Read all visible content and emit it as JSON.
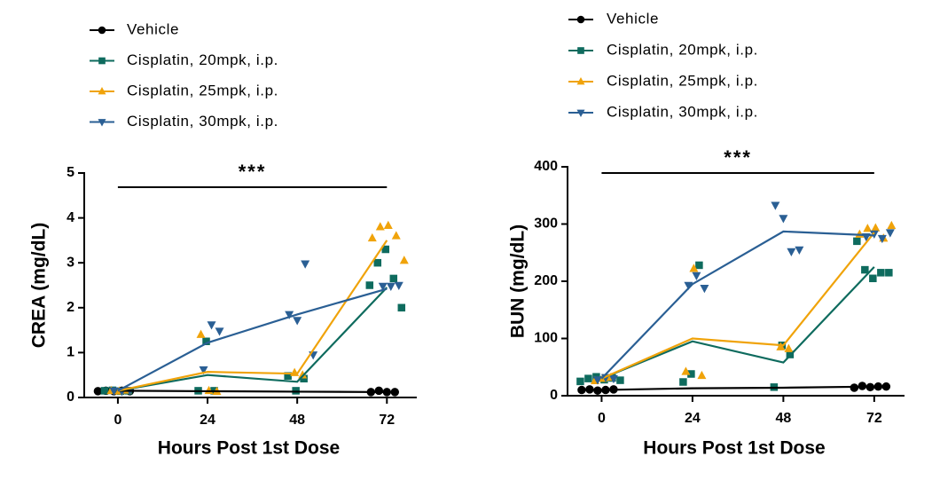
{
  "chart_data": [
    {
      "type": "line",
      "ylabel": "CREA (mg/dL)",
      "xlabel": "Hours Post 1st Dose",
      "annotation": "***",
      "annotation_span": [
        0,
        72
      ],
      "x": [
        0,
        24,
        48,
        72
      ],
      "xlim": [
        -9,
        80
      ],
      "xticks": [
        0,
        24,
        48,
        72
      ],
      "ylim": [
        0,
        5
      ],
      "yticks": [
        0,
        1,
        2,
        3,
        4,
        5
      ],
      "series": [
        {
          "name": "Vehicle",
          "color": "#000000",
          "marker": "circle",
          "values": [
            0.15,
            0.14,
            0.13,
            0.12
          ],
          "points": [
            [
              0,
              0.14
            ],
            [
              0,
              0.15
            ],
            [
              0,
              0.14
            ],
            [
              0,
              0.15
            ],
            [
              0,
              0.14
            ],
            [
              72,
              0.12
            ],
            [
              72,
              0.15
            ],
            [
              72,
              0.12
            ],
            [
              72,
              0.12
            ]
          ]
        },
        {
          "name": "Cisplatin, 20mpk, i.p.",
          "color": "#0e6b5e",
          "marker": "square",
          "values": [
            0.15,
            0.5,
            0.35,
            2.45
          ],
          "points": [
            [
              0,
              0.15
            ],
            [
              0,
              0.16
            ],
            [
              0,
              0.14
            ],
            [
              0,
              0.15
            ],
            [
              24,
              0.15
            ],
            [
              24,
              1.25
            ],
            [
              24,
              0.15
            ],
            [
              48,
              0.48
            ],
            [
              48,
              0.15
            ],
            [
              48,
              0.42
            ],
            [
              72,
              2.5
            ],
            [
              72,
              3.0
            ],
            [
              72,
              3.3
            ],
            [
              72,
              2.65
            ],
            [
              72,
              2.0
            ]
          ]
        },
        {
          "name": "Cisplatin, 25mpk, i.p.",
          "color": "#f0a30a",
          "marker": "triangle-up",
          "values": [
            0.15,
            0.57,
            0.53,
            3.5
          ],
          "points": [
            [
              0,
              0.15
            ],
            [
              0,
              0.14
            ],
            [
              0,
              0.16
            ],
            [
              24,
              1.4
            ],
            [
              24,
              0.15
            ],
            [
              24,
              0.13
            ],
            [
              48,
              0.55
            ],
            [
              48,
              0.5
            ],
            [
              72,
              3.55
            ],
            [
              72,
              3.8
            ],
            [
              72,
              3.83
            ],
            [
              72,
              3.6
            ],
            [
              72,
              3.05
            ]
          ]
        },
        {
          "name": "Cisplatin, 30mpk, i.p.",
          "color": "#2a5f94",
          "marker": "triangle-down",
          "values": [
            0.15,
            1.22,
            1.85,
            2.42
          ],
          "points": [
            [
              0,
              0.15
            ],
            [
              0,
              0.14
            ],
            [
              0,
              0.16
            ],
            [
              24,
              0.62
            ],
            [
              24,
              1.62
            ],
            [
              24,
              1.48
            ],
            [
              48,
              1.85
            ],
            [
              48,
              1.72
            ],
            [
              48,
              2.98
            ],
            [
              48,
              0.95
            ],
            [
              72,
              2.48
            ],
            [
              72,
              2.48
            ],
            [
              72,
              2.5
            ]
          ]
        }
      ]
    },
    {
      "type": "line",
      "ylabel": "BUN (mg/dL)",
      "xlabel": "Hours Post 1st Dose",
      "annotation": "***",
      "annotation_span": [
        0,
        72
      ],
      "x": [
        0,
        24,
        48,
        72
      ],
      "xlim": [
        -9,
        80
      ],
      "xticks": [
        0,
        24,
        48,
        72
      ],
      "ylim": [
        0,
        400
      ],
      "yticks": [
        0,
        100,
        200,
        300,
        400
      ],
      "series": [
        {
          "name": "Vehicle",
          "color": "#000000",
          "marker": "circle",
          "values": [
            10,
            13,
            14,
            16
          ],
          "points": [
            [
              0,
              10
            ],
            [
              0,
              11
            ],
            [
              0,
              9
            ],
            [
              0,
              10
            ],
            [
              0,
              11
            ],
            [
              72,
              14
            ],
            [
              72,
              17
            ],
            [
              72,
              15
            ],
            [
              72,
              16
            ],
            [
              72,
              16
            ]
          ]
        },
        {
          "name": "Cisplatin, 20mpk, i.p.",
          "color": "#0e6b5e",
          "marker": "square",
          "values": [
            30,
            95,
            58,
            225
          ],
          "points": [
            [
              0,
              25
            ],
            [
              0,
              30
            ],
            [
              0,
              33
            ],
            [
              0,
              28
            ],
            [
              0,
              31
            ],
            [
              0,
              27
            ],
            [
              24,
              24
            ],
            [
              24,
              38
            ],
            [
              24,
              228
            ],
            [
              48,
              15
            ],
            [
              48,
              88
            ],
            [
              48,
              72
            ],
            [
              72,
              270
            ],
            [
              72,
              220
            ],
            [
              72,
              205
            ],
            [
              72,
              215
            ],
            [
              72,
              215
            ]
          ]
        },
        {
          "name": "Cisplatin, 25mpk, i.p.",
          "color": "#f0a30a",
          "marker": "triangle-up",
          "values": [
            30,
            100,
            88,
            285
          ],
          "points": [
            [
              0,
              26
            ],
            [
              0,
              30
            ],
            [
              0,
              32
            ],
            [
              24,
              42
            ],
            [
              24,
              222
            ],
            [
              24,
              35
            ],
            [
              48,
              85
            ],
            [
              48,
              82
            ],
            [
              72,
              282
            ],
            [
              72,
              292
            ],
            [
              72,
              293
            ],
            [
              72,
              275
            ],
            [
              72,
              297
            ]
          ]
        },
        {
          "name": "Cisplatin, 30mpk, i.p.",
          "color": "#2a5f94",
          "marker": "triangle-down",
          "values": [
            30,
            195,
            287,
            280
          ],
          "points": [
            [
              0,
              28
            ],
            [
              0,
              32
            ],
            [
              0,
              30
            ],
            [
              24,
              193
            ],
            [
              24,
              210
            ],
            [
              24,
              188
            ],
            [
              48,
              333
            ],
            [
              48,
              310
            ],
            [
              48,
              252
            ],
            [
              48,
              255
            ],
            [
              72,
              278
            ],
            [
              72,
              283
            ],
            [
              72,
              275
            ],
            [
              72,
              285
            ]
          ]
        }
      ]
    }
  ]
}
